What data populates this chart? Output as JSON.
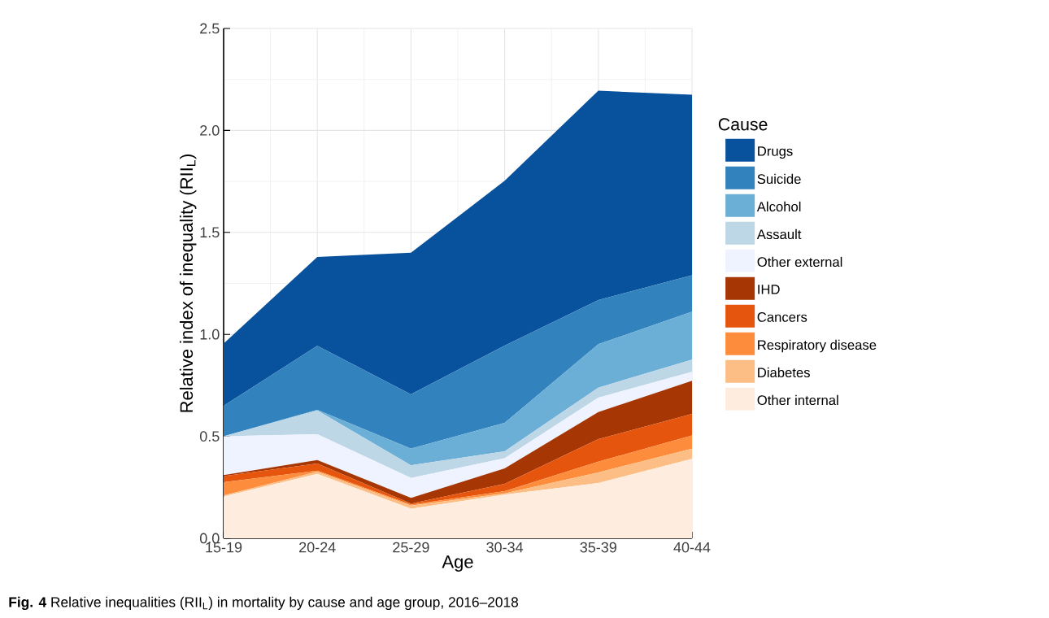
{
  "chart_data": {
    "type": "area",
    "stacked": true,
    "categories": [
      "15-19",
      "20-24",
      "25-29",
      "30-34",
      "35-39",
      "40-44"
    ],
    "xlabel": "Age",
    "ylabel": "Relative index of inequality (RII$_{L}$)",
    "ylim": [
      0,
      2.5
    ],
    "yticks": [
      {
        "value": 0,
        "label": "0.0"
      },
      {
        "value": 0.5,
        "label": "0.5"
      },
      {
        "value": 1,
        "label": "1.0"
      },
      {
        "value": 1.5,
        "label": "1.5"
      },
      {
        "value": 2,
        "label": "2.0"
      },
      {
        "value": 2.5,
        "label": "2.5"
      }
    ],
    "grid": true,
    "legend": "right",
    "legend_title": "Cause",
    "series": [
      {
        "name": "Other internal",
        "color": "#feedde",
        "values": [
          0.205,
          0.316,
          0.145,
          0.214,
          0.271,
          0.39
        ]
      },
      {
        "name": "Diabetes",
        "color": "#fdbe85",
        "values": [
          0.005,
          0.011,
          0.015,
          0.006,
          0.052,
          0.05
        ]
      },
      {
        "name": "Respiratory disease",
        "color": "#fd8d3c",
        "values": [
          0.065,
          0.005,
          0.005,
          0.011,
          0.053,
          0.064
        ]
      },
      {
        "name": "Cancers",
        "color": "#e6550d",
        "values": [
          0.03,
          0.035,
          0.005,
          0.036,
          0.11,
          0.106
        ]
      },
      {
        "name": "IHD",
        "color": "#a63603",
        "values": [
          0.005,
          0.017,
          0.028,
          0.076,
          0.133,
          0.162
        ]
      },
      {
        "name": "Other external",
        "color": "#eff3ff",
        "values": [
          0.19,
          0.126,
          0.098,
          0.05,
          0.071,
          0.044
        ]
      },
      {
        "name": "Assault",
        "color": "#bdd7e7",
        "values": [
          0.0,
          0.117,
          0.062,
          0.034,
          0.049,
          0.06
        ]
      },
      {
        "name": "Alcohol",
        "color": "#6baed6",
        "values": [
          0.0,
          0.003,
          0.082,
          0.139,
          0.213,
          0.235
        ]
      },
      {
        "name": "Suicide",
        "color": "#3182bd",
        "values": [
          0.15,
          0.314,
          0.266,
          0.379,
          0.216,
          0.179
        ]
      },
      {
        "name": "Drugs",
        "color": "#08519c",
        "values": [
          0.305,
          0.436,
          0.694,
          0.808,
          1.027,
          0.885
        ]
      }
    ],
    "annotations": [
      "**Fig. 4** Relative inequalities (RII$_{L}$) in mortality by cause and age group, 2016–2018"
    ]
  }
}
